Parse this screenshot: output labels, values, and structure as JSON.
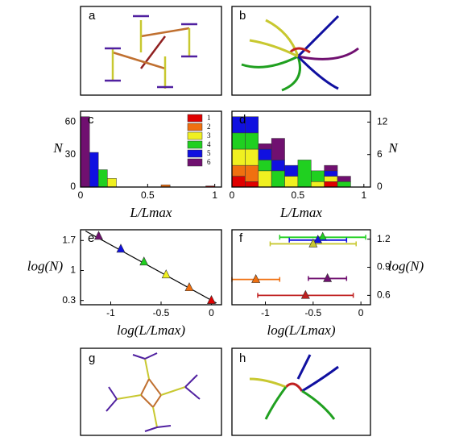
{
  "image_panels": [
    {
      "label": "a"
    },
    {
      "label": "b"
    },
    {
      "label": "g"
    },
    {
      "label": "h"
    }
  ],
  "chart_data": [
    {
      "type": "histogram",
      "panel_label": "c",
      "xlabel": "L/Lmax",
      "ylabel": "N",
      "y_axis": "left",
      "legend": "upper right",
      "bins": [
        0,
        0.067,
        0.133,
        0.2,
        0.267,
        0.333,
        0.4,
        0.467,
        0.533,
        0.6,
        0.667,
        0.733,
        0.8,
        0.867,
        0.933,
        1
      ],
      "series": [
        {
          "name": "1",
          "color": "#e00000",
          "values": [
            0,
            0,
            0,
            0,
            0,
            0,
            0,
            0,
            0,
            0,
            0,
            0,
            0,
            0,
            1
          ]
        },
        {
          "name": "2",
          "color": "#f07010",
          "values": [
            0,
            0,
            0,
            0,
            0,
            0,
            0,
            0,
            0,
            2,
            0,
            0,
            0,
            0,
            0
          ]
        },
        {
          "name": "3",
          "color": "#f0f020",
          "values": [
            0,
            0,
            0,
            8,
            0,
            0,
            0,
            0,
            0,
            0,
            0,
            0,
            0,
            0,
            0
          ]
        },
        {
          "name": "4",
          "color": "#20d020",
          "values": [
            0,
            0,
            16,
            0,
            0,
            0,
            0,
            0,
            0,
            0,
            0,
            0,
            0,
            0,
            0
          ]
        },
        {
          "name": "5",
          "color": "#1010e0",
          "values": [
            0,
            32,
            0,
            0,
            0,
            0,
            0,
            0,
            0,
            0,
            0,
            0,
            0,
            0,
            0
          ]
        },
        {
          "name": "6",
          "color": "#701070",
          "values": [
            65,
            0,
            0,
            0,
            0,
            0,
            0,
            0,
            0,
            0,
            0,
            0,
            0,
            0,
            0
          ]
        }
      ],
      "xlim": [
        0,
        1.05
      ],
      "xticks": [
        0,
        0.5,
        1
      ],
      "ylim": [
        0,
        70
      ],
      "yticks": [
        0,
        30,
        60
      ]
    },
    {
      "type": "histogram",
      "panel_label": "d",
      "xlabel": "L/Lmax",
      "ylabel": "N",
      "y_axis": "right",
      "bins": [
        0,
        0.1,
        0.2,
        0.3,
        0.4,
        0.5,
        0.6,
        0.7,
        0.8,
        0.9
      ],
      "series": [
        {
          "color": "#e00000",
          "values": [
            2,
            1,
            0,
            0,
            0,
            0,
            0,
            1,
            0
          ]
        },
        {
          "color": "#f07010",
          "values": [
            2,
            3,
            0,
            0,
            0,
            0,
            0,
            0,
            0
          ]
        },
        {
          "color": "#f0f020",
          "values": [
            3,
            3,
            3,
            0,
            2,
            0,
            1,
            1,
            0
          ]
        },
        {
          "color": "#20d020",
          "values": [
            3,
            3,
            2,
            3,
            0,
            5,
            2,
            0,
            1
          ]
        },
        {
          "color": "#1010e0",
          "values": [
            3,
            3,
            2,
            2,
            2,
            0,
            0,
            1,
            0
          ]
        },
        {
          "color": "#701070",
          "values": [
            0,
            0,
            1,
            4,
            0,
            0,
            0,
            1,
            1
          ]
        }
      ],
      "xlim": [
        0,
        1.05
      ],
      "xticks": [
        0,
        0.5,
        1
      ],
      "ylim": [
        0,
        14
      ],
      "yticks": [
        0,
        6,
        12
      ]
    },
    {
      "type": "scatter",
      "panel_label": "e",
      "xlabel": "log(L/Lmax)",
      "ylabel": "log(N)",
      "y_axis": "left",
      "series": [
        {
          "color": "#701070",
          "x": [
            -1.12
          ],
          "values": [
            1.8
          ]
        },
        {
          "color": "#1010e0",
          "x": [
            -0.9
          ],
          "values": [
            1.5
          ]
        },
        {
          "color": "#20d020",
          "x": [
            -0.67
          ],
          "values": [
            1.2
          ]
        },
        {
          "color": "#f0f020",
          "x": [
            -0.45
          ],
          "values": [
            0.9
          ]
        },
        {
          "color": "#f07010",
          "x": [
            -0.22
          ],
          "values": [
            0.6
          ]
        },
        {
          "color": "#e00000",
          "x": [
            0
          ],
          "values": [
            0.3
          ]
        }
      ],
      "trend_x": [
        -1.25,
        0.05
      ],
      "trend_y": [
        1.92,
        0.24
      ],
      "xlim": [
        -1.3,
        0.1
      ],
      "xticks": [
        -1,
        -0.5,
        0
      ],
      "ylim": [
        0.2,
        1.95
      ],
      "yticks": [
        0.3,
        1,
        1.7
      ]
    },
    {
      "type": "errorbar",
      "panel_label": "f",
      "xlabel": "log(L/Lmax)",
      "ylabel": "log(N)",
      "y_axis": "right",
      "series": [
        {
          "color": "#20d020",
          "x": [
            -0.4
          ],
          "values": [
            1.22
          ],
          "errors": [
            0.45
          ]
        },
        {
          "color": "#1010e0",
          "x": [
            -0.45
          ],
          "values": [
            1.19
          ],
          "errors": [
            0.3
          ]
        },
        {
          "color": "#c8c830",
          "x": [
            -0.5
          ],
          "values": [
            1.15
          ],
          "errors": [
            0.45
          ]
        },
        {
          "color": "#701070",
          "x": [
            -0.35
          ],
          "values": [
            0.78
          ],
          "errors": [
            0.2
          ]
        },
        {
          "color": "#f07010",
          "x": [
            -1.1
          ],
          "values": [
            0.77
          ],
          "errors": [
            0.25
          ]
        },
        {
          "color": "#c02020",
          "x": [
            -0.58
          ],
          "values": [
            0.6
          ],
          "errors": [
            0.5
          ]
        }
      ],
      "xlim": [
        -1.35,
        0.1
      ],
      "xticks": [
        -1,
        -0.5,
        0
      ],
      "ylim": [
        0.5,
        1.3
      ],
      "yticks": [
        0.6,
        0.9,
        1.2
      ]
    }
  ]
}
